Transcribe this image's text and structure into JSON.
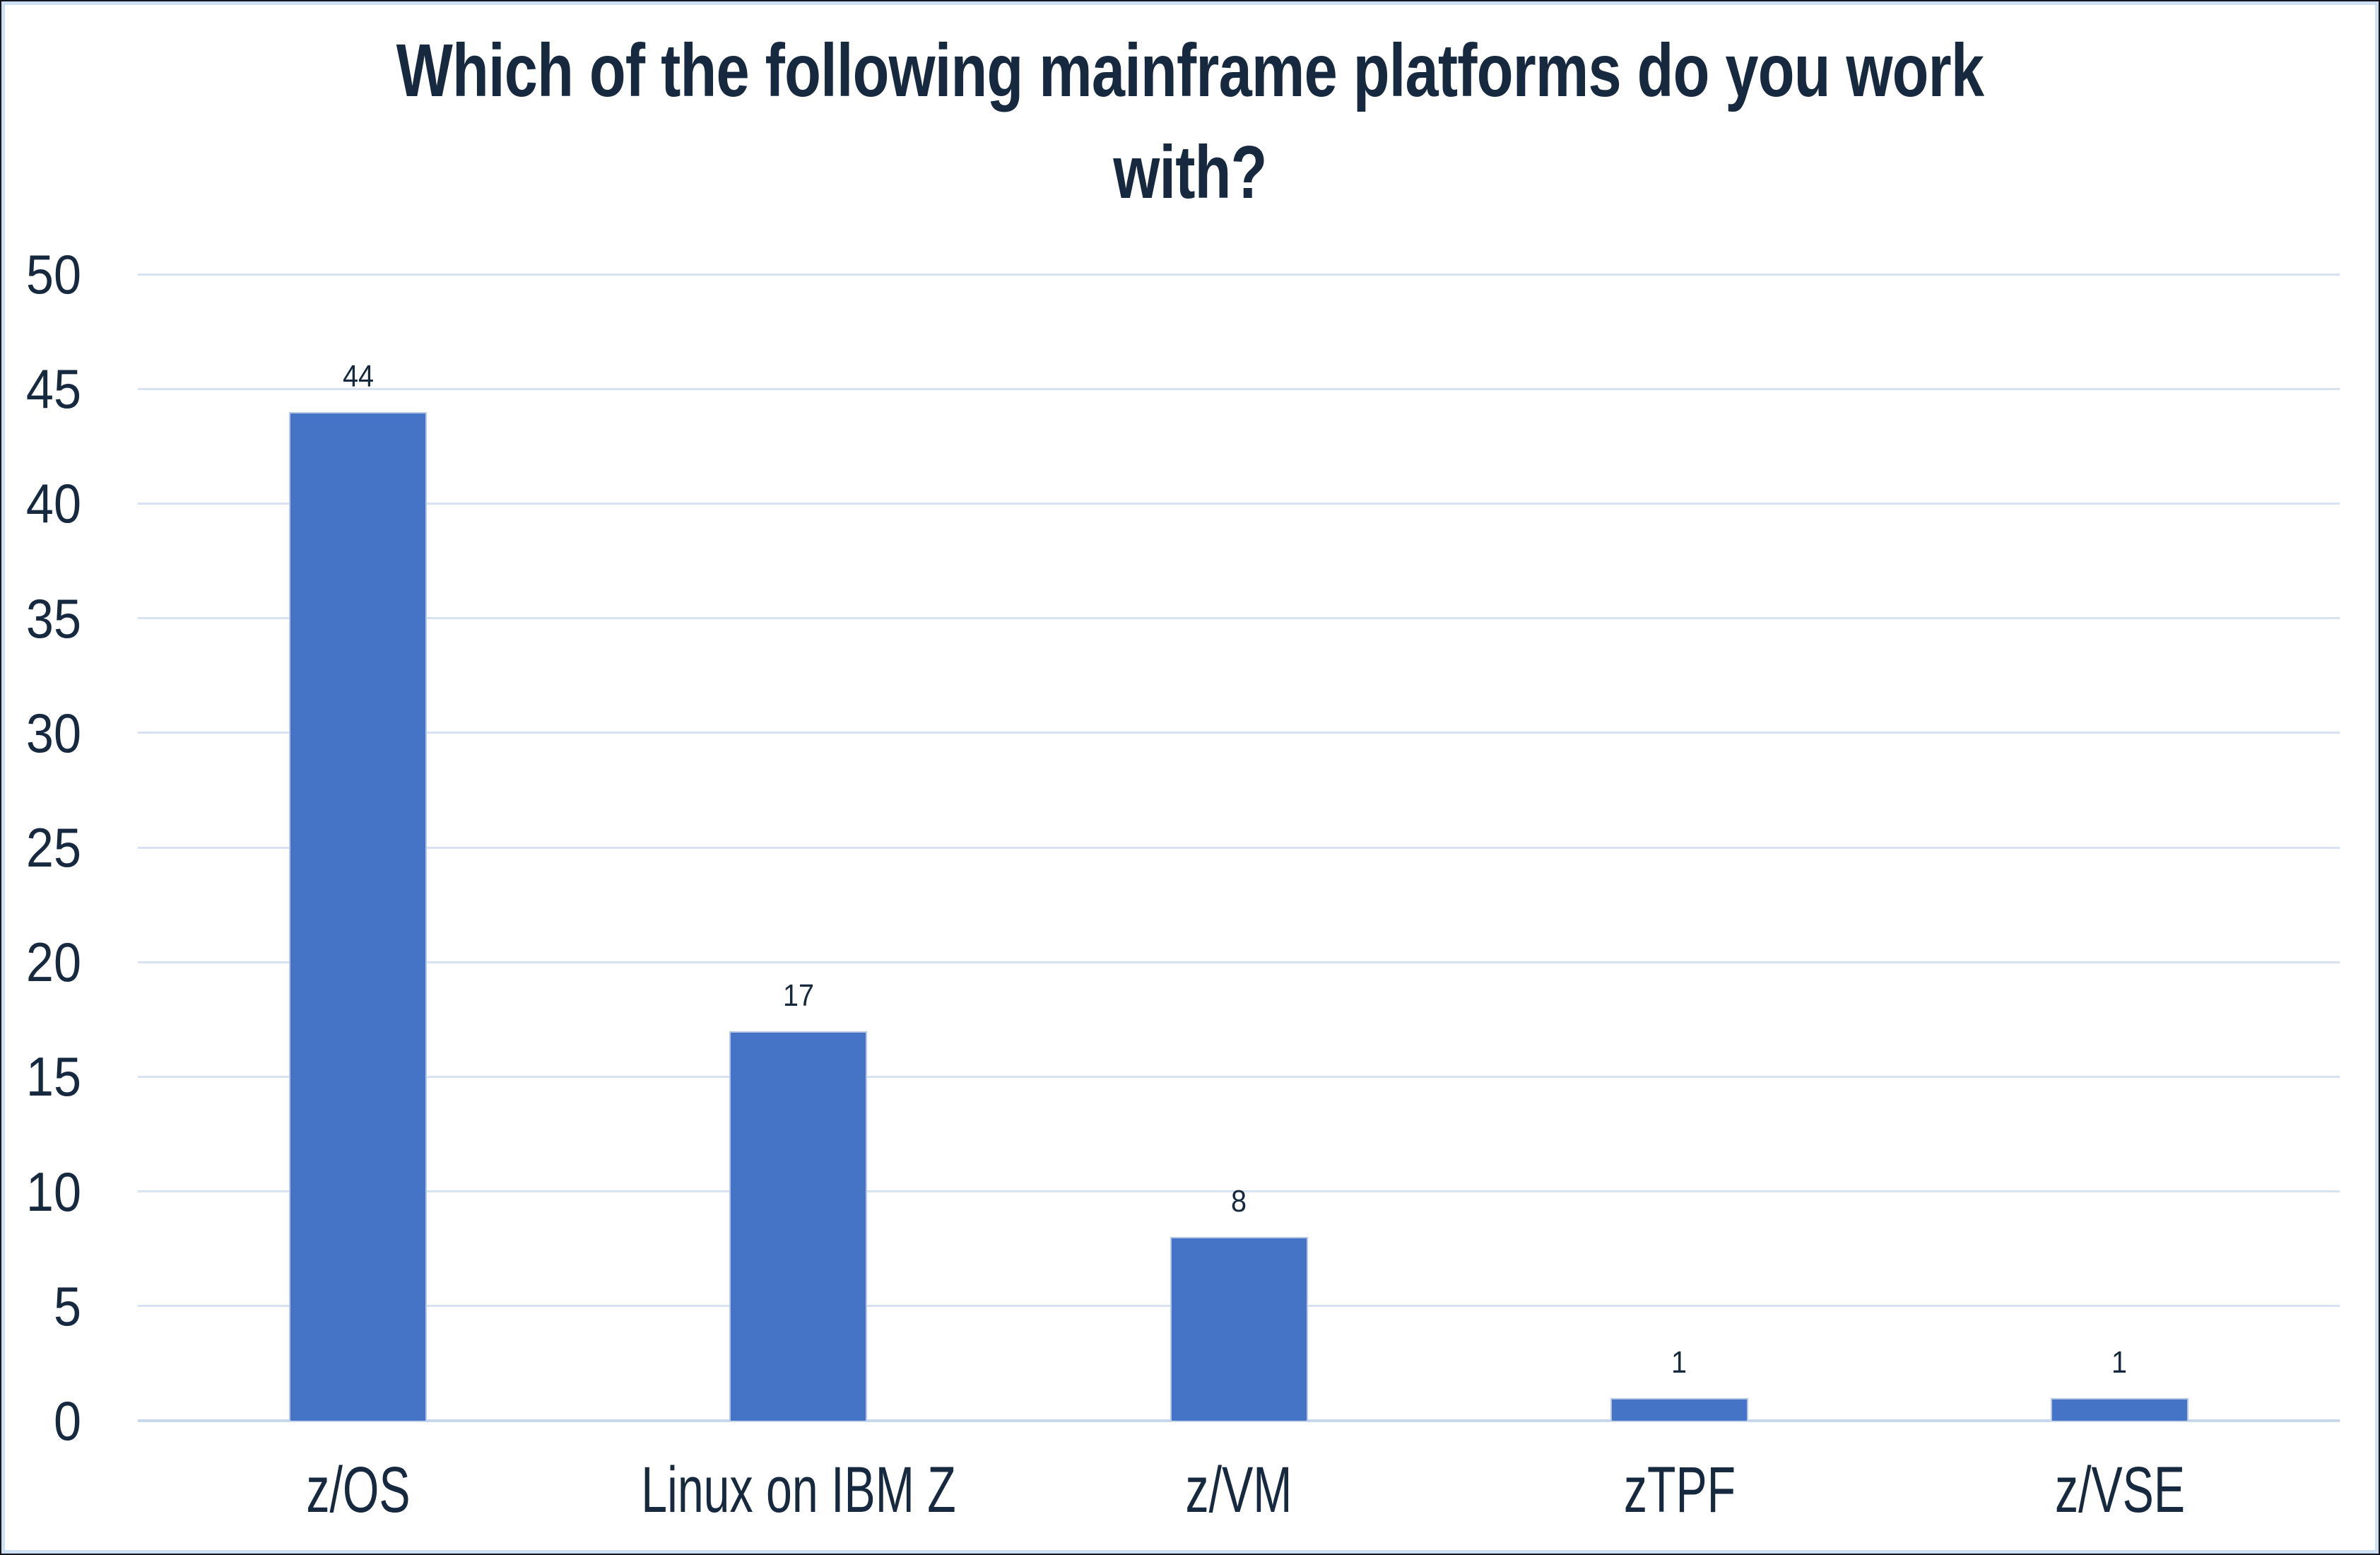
{
  "title": {
    "line1": "Which of the following mainframe platforms do you work",
    "line2": "with?"
  },
  "chart_data": {
    "type": "bar",
    "title": "Which of the following mainframe platforms do you work with?",
    "categories": [
      "z/OS",
      "Linux on IBM Z",
      "z/VM",
      "zTPF",
      "z/VSE"
    ],
    "values": [
      44,
      17,
      8,
      1,
      1
    ],
    "data_labels": [
      44,
      17,
      8,
      1,
      1
    ],
    "xlabel": "",
    "ylabel": "",
    "ylim": [
      0,
      50
    ],
    "ytick_step": 5,
    "yticks": [
      0,
      5,
      10,
      15,
      20,
      25,
      30,
      35,
      40,
      45,
      50
    ],
    "grid": "horizontal",
    "legend": "none",
    "colors": {
      "bar": "#4574C6",
      "bar_edge": "#B6C8E6",
      "text": "#17293F",
      "gridline": "#D8E2F2",
      "axis_baseline": "#C7D7EC",
      "frame_inner": "#CCDFF4",
      "frame_outer": "#14171C",
      "background": "#FFFFFF"
    }
  }
}
